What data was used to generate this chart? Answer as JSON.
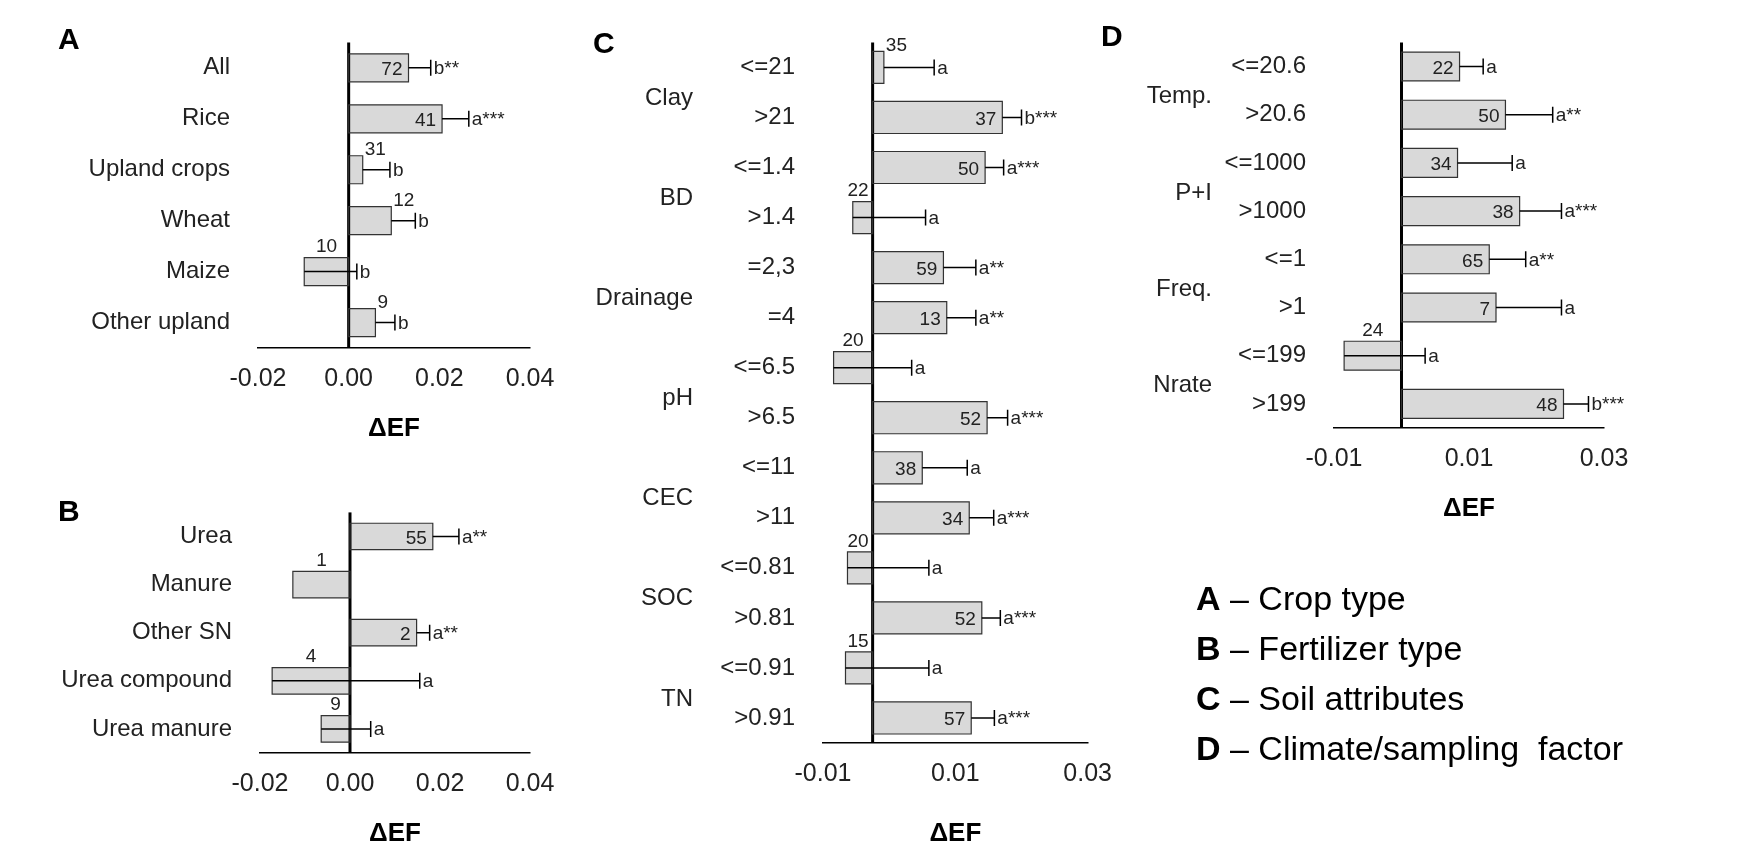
{
  "chart_data": [
    {
      "type": "bar",
      "orientation": "horizontal",
      "title": "A",
      "xlabel": "ΔEF",
      "categories": [
        "All",
        "Rice",
        "Upland crops",
        "Wheat",
        "Maize",
        "Other upland"
      ],
      "color": "#d9d9d9",
      "values": [
        0.0132,
        0.0206,
        0.0031,
        0.0094,
        -0.0098,
        0.0059
      ],
      "errors": [
        [
          0.0132,
          0.0181
        ],
        [
          0.0206,
          0.0265
        ],
        [
          0.0031,
          0.0091
        ],
        [
          0.0094,
          0.0147
        ],
        [
          -0.0098,
          0.0018
        ],
        [
          0.0059,
          0.0102
        ]
      ],
      "xlim": [
        -0.02,
        0.04
      ],
      "xticks": [
        {
          "value": -0.02,
          "label": "-0.02"
        },
        {
          "value": 0,
          "label": "0.00"
        },
        {
          "value": 0.02,
          "label": "0.02"
        },
        {
          "value": 0.04,
          "label": "0.04"
        }
      ],
      "annotations": [
        {
          "text": "72",
          "x": 0.0132,
          "y": "All"
        },
        {
          "text": "b**",
          "x": 0.0181,
          "y": "All"
        },
        {
          "text": "41",
          "x": 0.0206,
          "y": "Rice"
        },
        {
          "text": "a***",
          "x": 0.0265,
          "y": "Rice"
        },
        {
          "text": "31",
          "x": 0.0031,
          "y": "Upland crops"
        },
        {
          "text": "b",
          "x": 0.0091,
          "y": "Upland crops"
        },
        {
          "text": "12",
          "x": 0.0094,
          "y": "Wheat"
        },
        {
          "text": "b",
          "x": 0.0147,
          "y": "Wheat"
        },
        {
          "text": "10",
          "x": -0.0098,
          "y": "Maize"
        },
        {
          "text": "b",
          "x": 0.0018,
          "y": "Maize"
        },
        {
          "text": "9",
          "x": 0.0059,
          "y": "Other upland"
        },
        {
          "text": "b",
          "x": 0.0102,
          "y": "Other upland"
        }
      ]
    },
    {
      "type": "bar",
      "orientation": "horizontal",
      "title": "B",
      "xlabel": "ΔEF",
      "categories": [
        "Urea",
        "Manure",
        "Other SN",
        "Urea compound",
        "Urea manure"
      ],
      "color": "#d9d9d9",
      "values": [
        0.0184,
        -0.0127,
        0.0148,
        -0.0173,
        -0.0064
      ],
      "errors": [
        [
          0.0184,
          0.0242
        ],
        null,
        [
          0.0148,
          0.0177
        ],
        [
          -0.0173,
          0.0155
        ],
        [
          -0.0064,
          0.0046
        ]
      ],
      "xlim": [
        -0.02,
        0.04
      ],
      "xticks": [
        {
          "value": -0.02,
          "label": "-0.02"
        },
        {
          "value": 0,
          "label": "0.00"
        },
        {
          "value": 0.02,
          "label": "0.02"
        },
        {
          "value": 0.04,
          "label": "0.04"
        }
      ],
      "annotations": [
        {
          "text": "55",
          "x": 0.0184,
          "y": "Urea"
        },
        {
          "text": "a**",
          "x": 0.0242,
          "y": "Urea"
        },
        {
          "text": "1",
          "x": -0.0127,
          "y": "Manure"
        },
        {
          "text": "2",
          "x": 0.0148,
          "y": "Other SN"
        },
        {
          "text": "a**",
          "x": 0.0177,
          "y": "Other SN"
        },
        {
          "text": "4",
          "x": -0.0173,
          "y": "Urea compound"
        },
        {
          "text": "a",
          "x": 0.0155,
          "y": "Urea compound"
        },
        {
          "text": "9",
          "x": -0.0064,
          "y": "Urea manure"
        },
        {
          "text": "a",
          "x": 0.0046,
          "y": "Urea manure"
        }
      ]
    },
    {
      "type": "bar",
      "orientation": "horizontal",
      "title": "C",
      "xlabel": "ΔEF",
      "categories": [
        "<=21",
        ">21",
        "<=1.4",
        ">1.4",
        "=2,3",
        "=4",
        "<=6.5",
        ">6.5",
        "<=11",
        ">11",
        "<=0.81",
        ">0.81",
        "<=0.91",
        ">0.91"
      ],
      "color": "#d9d9d9",
      "values": [
        0.0017,
        0.0196,
        0.017,
        -0.003,
        0.0107,
        0.0112,
        -0.0059,
        0.0173,
        0.0075,
        0.0146,
        -0.0038,
        0.0165,
        -0.0041,
        0.0149
      ],
      "errors": [
        [
          0.0017,
          0.0093
        ],
        [
          0.0196,
          0.0225
        ],
        [
          0.017,
          0.0198
        ],
        [
          -0.003,
          0.008
        ],
        [
          0.0107,
          0.0156
        ],
        [
          0.0112,
          0.0156
        ],
        [
          -0.0059,
          0.0059
        ],
        [
          0.0173,
          0.0204
        ],
        [
          0.0075,
          0.0143
        ],
        [
          0.0146,
          0.0183
        ],
        [
          -0.0038,
          0.0085
        ],
        [
          0.0165,
          0.0193
        ],
        [
          -0.0041,
          0.0085
        ],
        [
          0.0149,
          0.0184
        ]
      ],
      "xlim": [
        -0.0075,
        0.0325
      ],
      "xticks": [
        {
          "value": -0.0075,
          "label": "-0.01"
        },
        {
          "value": 0.0125,
          "label": "0.01"
        },
        {
          "value": 0.0325,
          "label": "0.03"
        }
      ],
      "annotations": [
        "Clay",
        "BD",
        "Drainage",
        "pH",
        "CEC",
        "SOC",
        "TN",
        {
          "text": "35",
          "x": 0.0017,
          "y": "<=21"
        },
        {
          "text": "a",
          "x": 0.0093,
          "y": "<=21"
        },
        {
          "text": "37",
          "x": 0.0196,
          "y": ">21"
        },
        {
          "text": "b***",
          "x": 0.0225,
          "y": ">21"
        },
        {
          "text": "50",
          "x": 0.017,
          "y": "<=1.4"
        },
        {
          "text": "a***",
          "x": 0.0198,
          "y": "<=1.4"
        },
        {
          "text": "22",
          "x": -0.003,
          "y": ">1.4"
        },
        {
          "text": "a",
          "x": 0.008,
          "y": ">1.4"
        },
        {
          "text": "59",
          "x": 0.0107,
          "y": "=2,3"
        },
        {
          "text": "a**",
          "x": 0.0156,
          "y": "=2,3"
        },
        {
          "text": "13",
          "x": 0.0112,
          "y": "=4"
        },
        {
          "text": "a**",
          "x": 0.0156,
          "y": "=4"
        },
        {
          "text": "20",
          "x": -0.0059,
          "y": "<=6.5"
        },
        {
          "text": "a",
          "x": 0.0059,
          "y": "<=6.5"
        },
        {
          "text": "52",
          "x": 0.0173,
          "y": ">6.5"
        },
        {
          "text": "a***",
          "x": 0.0204,
          "y": ">6.5"
        },
        {
          "text": "38",
          "x": 0.0075,
          "y": "<=11"
        },
        {
          "text": "a",
          "x": 0.0143,
          "y": "<=11"
        },
        {
          "text": "34",
          "x": 0.0146,
          "y": ">11"
        },
        {
          "text": "a***",
          "x": 0.0183,
          "y": ">11"
        },
        {
          "text": "20",
          "x": -0.0038,
          "y": "<=0.81"
        },
        {
          "text": "a",
          "x": 0.0085,
          "y": "<=0.81"
        },
        {
          "text": "52",
          "x": 0.0165,
          "y": ">0.81"
        },
        {
          "text": "a***",
          "x": 0.0193,
          "y": ">0.81"
        },
        {
          "text": "15",
          "x": -0.0041,
          "y": "<=0.91"
        },
        {
          "text": "a",
          "x": 0.0085,
          "y": "<=0.91"
        },
        {
          "text": "57",
          "x": 0.0149,
          "y": ">0.91"
        },
        {
          "text": "a***",
          "x": 0.0184,
          "y": ">0.91"
        }
      ]
    },
    {
      "type": "bar",
      "orientation": "horizontal",
      "title": "D",
      "xlabel": "ΔEF",
      "categories": [
        "<=20.6",
        ">20.6",
        "<=1000",
        ">1000",
        "<=1",
        ">1",
        "<=199",
        ">199"
      ],
      "color": "#d9d9d9",
      "values": [
        0.0086,
        0.0154,
        0.0083,
        0.0175,
        0.013,
        0.014,
        -0.0085,
        0.024
      ],
      "errors": [
        [
          0.0086,
          0.0121
        ],
        [
          0.0154,
          0.0224
        ],
        [
          0.0083,
          0.0164
        ],
        [
          0.0175,
          0.0237
        ],
        [
          0.013,
          0.0184
        ],
        [
          0.014,
          0.0237
        ],
        [
          -0.0085,
          0.0035
        ],
        [
          0.024,
          0.0277
        ]
      ],
      "xlim": [
        -0.01,
        0.03
      ],
      "xticks": [
        -0.01,
        {
          "value": 0.01,
          "label": "0.01"
        },
        {
          "value": 0.03,
          "label": "0.03"
        }
      ],
      "annotations": [
        "Temp.",
        "P+I",
        "Freq.",
        "Nrate",
        {
          "text": "22",
          "x": 0.0086,
          "y": "<=20.6"
        },
        {
          "text": "a",
          "x": 0.0121,
          "y": "<=20.6"
        },
        {
          "text": "50",
          "x": 0.0154,
          "y": ">20.6"
        },
        {
          "text": "a**",
          "x": 0.0224,
          "y": ">20.6"
        },
        {
          "text": "34",
          "x": 0.0083,
          "y": "<=1000"
        },
        {
          "text": "a",
          "x": 0.0164,
          "y": "<=1000"
        },
        {
          "text": "38",
          "x": 0.0175,
          "y": ">1000"
        },
        {
          "text": "a***",
          "x": 0.0237,
          "y": ">1000"
        },
        {
          "text": "65",
          "x": 0.013,
          "y": "<=1"
        },
        {
          "text": "a**",
          "x": 0.0184,
          "y": "<=1"
        },
        {
          "text": "7",
          "x": 0.014,
          "y": ">1"
        },
        {
          "text": "a",
          "x": 0.0237,
          "y": ">1"
        },
        {
          "text": "24",
          "x": -0.0085,
          "y": "<=199"
        },
        {
          "text": "a",
          "x": 0.0035,
          "y": "<=199"
        },
        {
          "text": "48",
          "x": 0.024,
          "y": ">199"
        },
        {
          "text": "b***",
          "x": 0.0277,
          "y": ">199"
        }
      ]
    },
    {
      "type": "other",
      "annotations": [
        "A – Crop type",
        "B – Fertilizer type",
        "C – Soil attributes",
        "D – Climate/sampling  factor"
      ]
    }
  ]
}
